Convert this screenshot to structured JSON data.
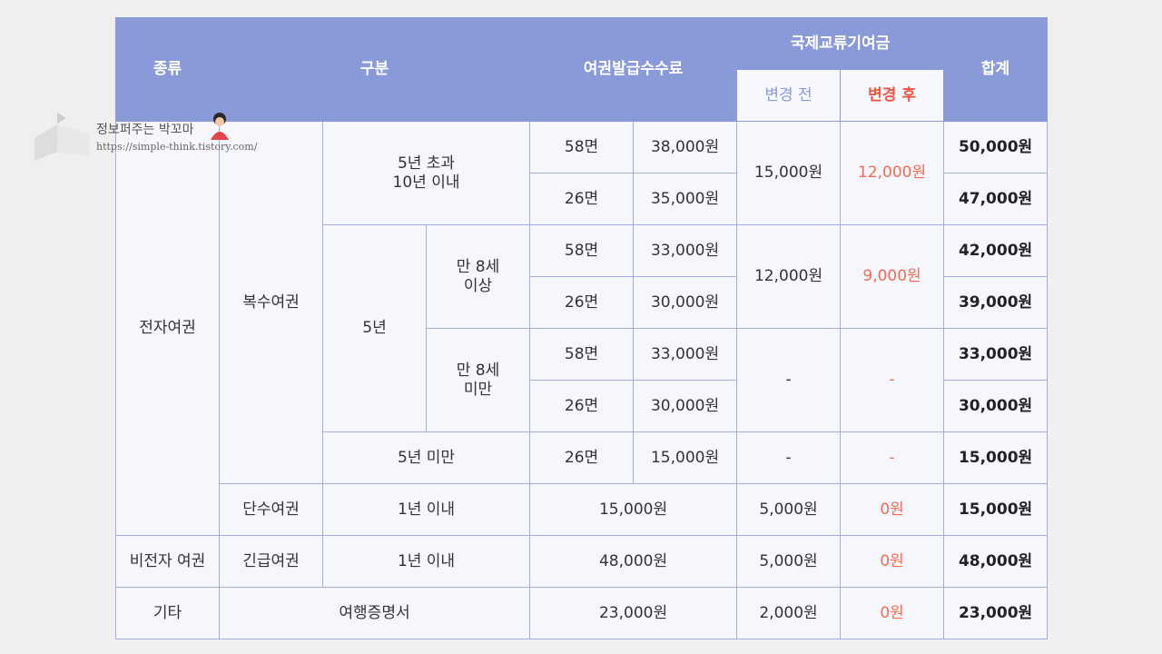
{
  "header": {
    "row1": [
      "종류",
      "구분",
      "여권발급수수료",
      "국제교류기여금",
      "합계"
    ],
    "row2": [
      "변경 전",
      "변경 후"
    ]
  },
  "rows": [
    [
      "전자여권",
      "복수여권",
      "5년 초과\n10년 이내",
      "58면",
      "38,000원",
      "15,000원",
      "12,000원",
      "50,000원"
    ],
    [
      "26면",
      "35,000원",
      "47,000원"
    ],
    [
      "5년",
      "만 8세\n이상",
      "58면",
      "33,000원",
      "12,000원",
      "9,000원",
      "42,000원"
    ],
    [
      "26면",
      "30,000원",
      "39,000원"
    ],
    [
      "만 8세\n미만",
      "58면",
      "33,000원",
      "-",
      "-",
      "33,000원"
    ],
    [
      "26면",
      "30,000원",
      "30,000원"
    ],
    [
      "5년 미만",
      "26면",
      "15,000원",
      "-",
      "-",
      "15,000원"
    ],
    [
      "단수여권",
      "1년 이내",
      "15,000원",
      "5,000원",
      "0원",
      "15,000원"
    ],
    [
      "비전자 여권",
      "긴급여권",
      "1년 이내",
      "48,000원",
      "5,000원",
      "0원",
      "48,000원"
    ],
    [
      "기타",
      "여행증명서",
      "23,000원",
      "2,000원",
      "0원",
      "23,000원"
    ]
  ],
  "watermark": {
    "name": "정보퍼주는 박꼬마",
    "url": "https://simple-think.tistory.com/"
  }
}
